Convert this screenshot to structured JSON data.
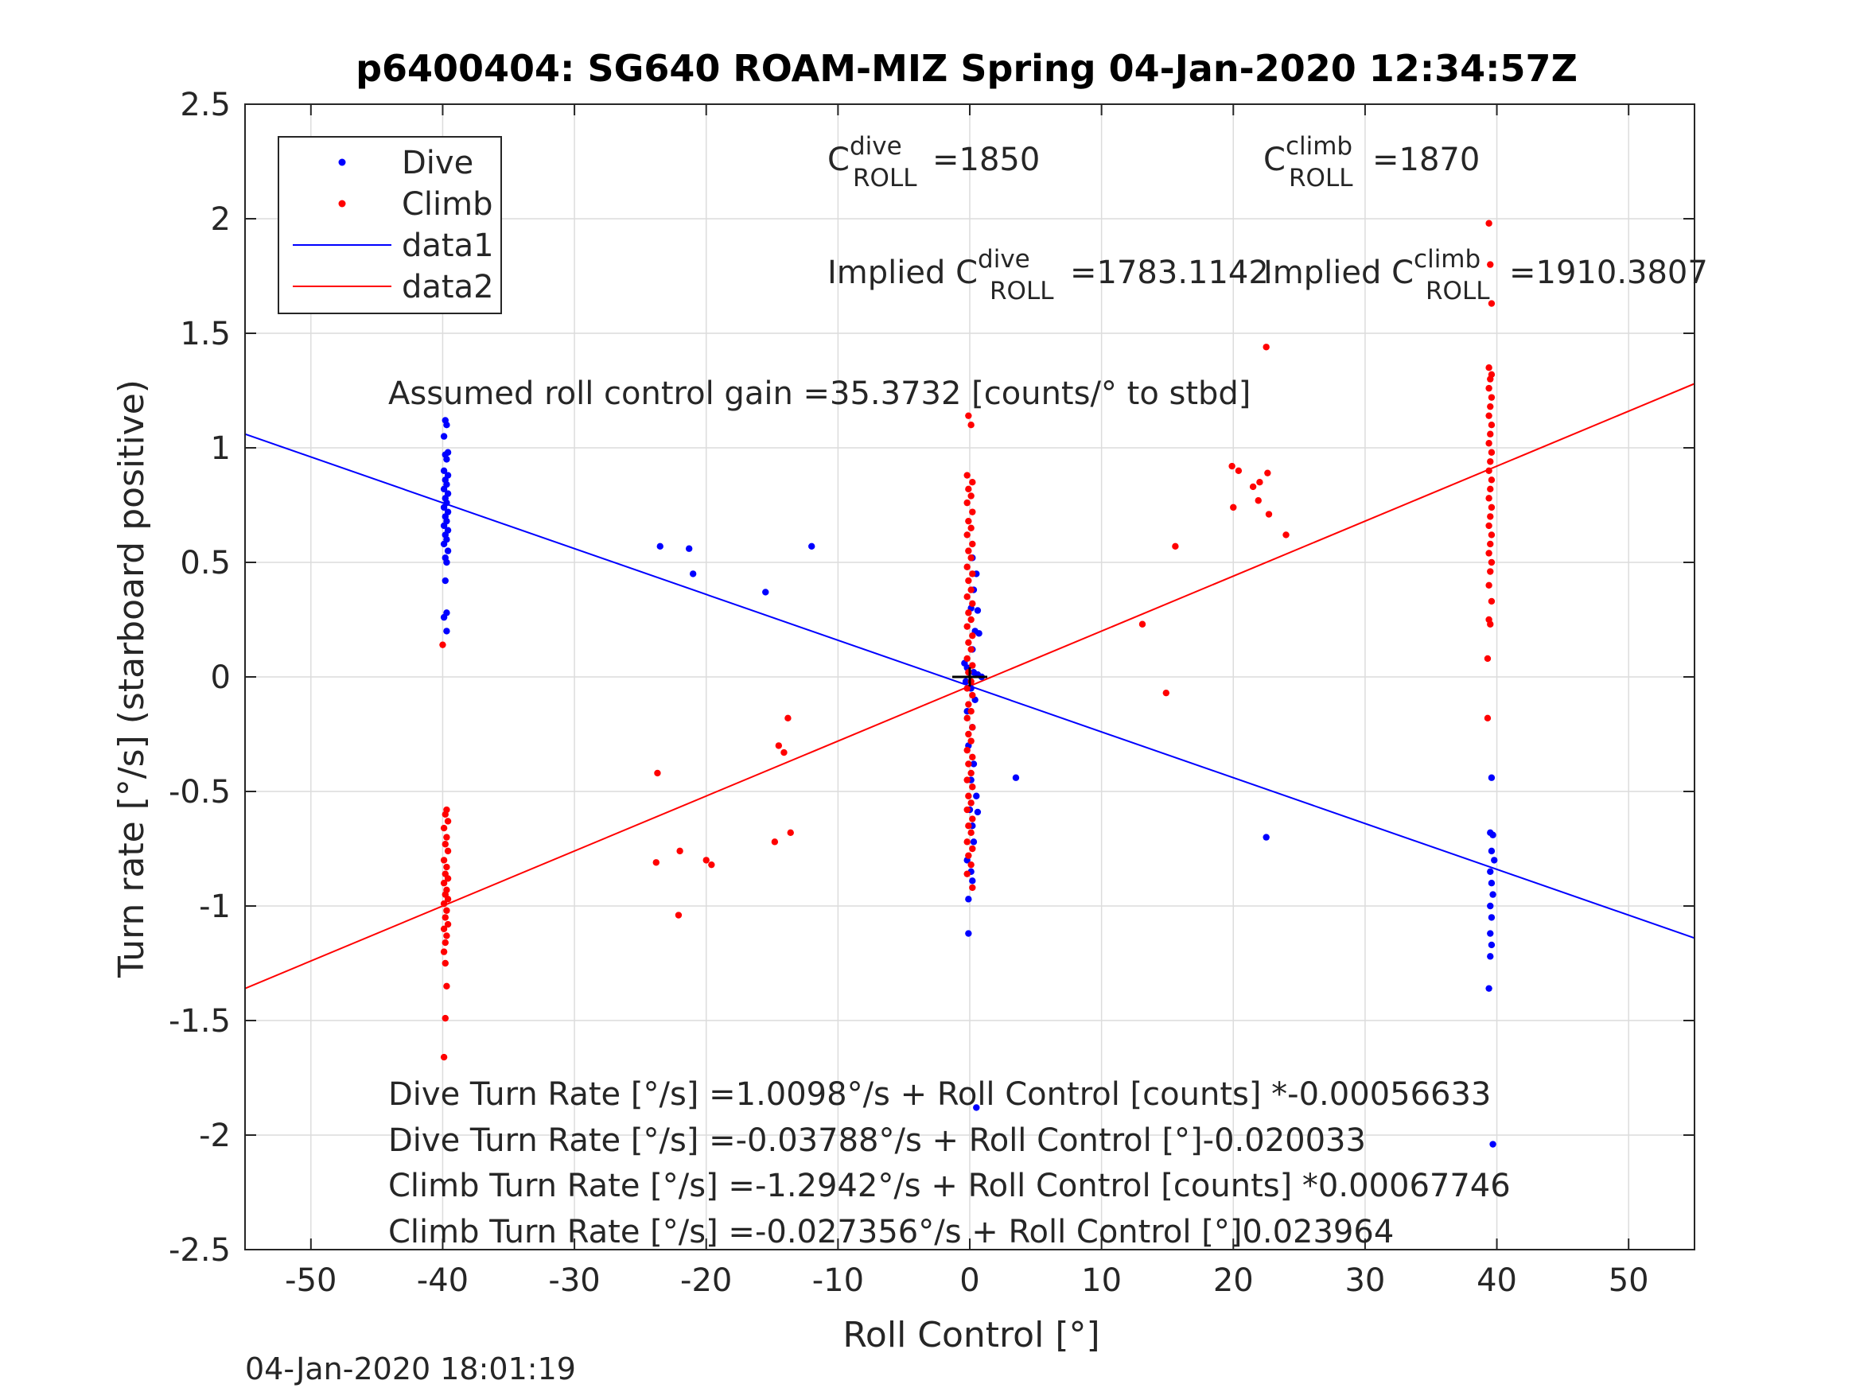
{
  "chart_data": {
    "type": "scatter",
    "title": "p6400404: SG640 ROAM-MIZ Spring 04-Jan-2020 12:34:57Z",
    "xlabel": "Roll Control [°]",
    "ylabel": "Turn rate [°/s] (starboard positive)",
    "xlim": [
      -55,
      55
    ],
    "ylim": [
      -2.5,
      2.5
    ],
    "xticks": [
      -50,
      -40,
      -30,
      -20,
      -10,
      0,
      10,
      20,
      30,
      40,
      50
    ],
    "yticks": [
      -2.5,
      -2,
      -1.5,
      -1,
      -0.5,
      0,
      0.5,
      1,
      1.5,
      2,
      2.5
    ],
    "xtick_labels": [
      "-50",
      "-40",
      "-30",
      "-20",
      "-10",
      "0",
      "10",
      "20",
      "30",
      "40",
      "50"
    ],
    "ytick_labels": [
      "-2.5",
      "-2",
      "-1.5",
      "-1",
      "-0.5",
      "0",
      "0.5",
      "1",
      "1.5",
      "2",
      "2.5"
    ],
    "grid": true,
    "legend_position": "top-left",
    "legend": [
      "Dive",
      "Climb",
      "data1",
      "data2"
    ],
    "colors": {
      "dive": "#0000ff",
      "climb": "#ff0000",
      "marker": "#000000",
      "grid": "#dcdcdc",
      "axis": "#262626"
    },
    "series": [
      {
        "name": "Dive",
        "kind": "points",
        "points": [
          [
            -39.8,
            1.12
          ],
          [
            -39.7,
            1.1
          ],
          [
            -39.9,
            1.05
          ],
          [
            -39.6,
            0.98
          ],
          [
            -39.8,
            0.97
          ],
          [
            -39.7,
            0.95
          ],
          [
            -39.9,
            0.9
          ],
          [
            -39.6,
            0.88
          ],
          [
            -39.8,
            0.86
          ],
          [
            -39.7,
            0.84
          ],
          [
            -39.9,
            0.82
          ],
          [
            -39.6,
            0.8
          ],
          [
            -39.8,
            0.78
          ],
          [
            -39.7,
            0.76
          ],
          [
            -39.9,
            0.74
          ],
          [
            -39.6,
            0.72
          ],
          [
            -39.8,
            0.7
          ],
          [
            -39.7,
            0.68
          ],
          [
            -39.9,
            0.66
          ],
          [
            -39.6,
            0.64
          ],
          [
            -39.8,
            0.62
          ],
          [
            -39.7,
            0.6
          ],
          [
            -39.9,
            0.58
          ],
          [
            -39.6,
            0.55
          ],
          [
            -39.8,
            0.52
          ],
          [
            -39.7,
            0.5
          ],
          [
            -39.8,
            0.42
          ],
          [
            -39.7,
            0.28
          ],
          [
            -39.9,
            0.26
          ],
          [
            -39.7,
            0.2
          ],
          [
            -23.5,
            0.57
          ],
          [
            -21.3,
            0.56
          ],
          [
            -21.0,
            0.45
          ],
          [
            -15.5,
            0.37
          ],
          [
            -12.0,
            0.57
          ],
          [
            0.2,
            0.52
          ],
          [
            0.5,
            0.45
          ],
          [
            0.3,
            0.38
          ],
          [
            0.1,
            0.3
          ],
          [
            0.6,
            0.29
          ],
          [
            0.4,
            0.2
          ],
          [
            0.7,
            0.19
          ],
          [
            0.2,
            0.12
          ],
          [
            -0.4,
            0.06
          ],
          [
            -0.2,
            0.04
          ],
          [
            0.3,
            0.02
          ],
          [
            0.6,
            0.01
          ],
          [
            0.9,
            0.0
          ],
          [
            -0.3,
            -0.02
          ],
          [
            0.1,
            -0.05
          ],
          [
            0.4,
            -0.1
          ],
          [
            -0.2,
            -0.15
          ],
          [
            0.2,
            -0.22
          ],
          [
            -0.1,
            -0.3
          ],
          [
            0.3,
            -0.38
          ],
          [
            0.1,
            -0.45
          ],
          [
            0.5,
            -0.52
          ],
          [
            0.0,
            -0.58
          ],
          [
            0.6,
            -0.59
          ],
          [
            0.2,
            -0.65
          ],
          [
            0.3,
            -0.72
          ],
          [
            -0.2,
            -0.8
          ],
          [
            0.1,
            -0.85
          ],
          [
            0.2,
            -0.89
          ],
          [
            -0.1,
            -0.97
          ],
          [
            -0.1,
            -1.12
          ],
          [
            0.5,
            -1.88
          ],
          [
            3.5,
            -0.44
          ],
          [
            22.5,
            -0.7
          ],
          [
            39.6,
            -0.44
          ],
          [
            39.5,
            -0.68
          ],
          [
            39.7,
            -0.69
          ],
          [
            39.6,
            -0.76
          ],
          [
            39.8,
            -0.8
          ],
          [
            39.5,
            -0.85
          ],
          [
            39.6,
            -0.9
          ],
          [
            39.7,
            -0.95
          ],
          [
            39.5,
            -1.0
          ],
          [
            39.6,
            -1.05
          ],
          [
            39.5,
            -1.12
          ],
          [
            39.6,
            -1.17
          ],
          [
            39.5,
            -1.22
          ],
          [
            39.4,
            -1.36
          ],
          [
            39.7,
            -2.04
          ]
        ]
      },
      {
        "name": "Climb",
        "kind": "points",
        "points": [
          [
            -40.0,
            0.14
          ],
          [
            -39.7,
            -0.58
          ],
          [
            -39.8,
            -0.6
          ],
          [
            -39.6,
            -0.63
          ],
          [
            -39.9,
            -0.66
          ],
          [
            -39.7,
            -0.7
          ],
          [
            -39.8,
            -0.73
          ],
          [
            -39.6,
            -0.76
          ],
          [
            -39.9,
            -0.8
          ],
          [
            -39.7,
            -0.83
          ],
          [
            -39.8,
            -0.86
          ],
          [
            -39.6,
            -0.88
          ],
          [
            -39.9,
            -0.9
          ],
          [
            -39.7,
            -0.93
          ],
          [
            -39.8,
            -0.95
          ],
          [
            -39.6,
            -0.97
          ],
          [
            -39.9,
            -0.99
          ],
          [
            -39.7,
            -1.02
          ],
          [
            -39.8,
            -1.05
          ],
          [
            -39.6,
            -1.08
          ],
          [
            -39.9,
            -1.1
          ],
          [
            -39.7,
            -1.13
          ],
          [
            -39.8,
            -1.16
          ],
          [
            -39.9,
            -1.2
          ],
          [
            -39.8,
            -1.25
          ],
          [
            -39.7,
            -1.35
          ],
          [
            -39.8,
            -1.49
          ],
          [
            -39.9,
            -1.66
          ],
          [
            -23.7,
            -0.42
          ],
          [
            -23.8,
            -0.81
          ],
          [
            -22.0,
            -0.76
          ],
          [
            -22.1,
            -1.04
          ],
          [
            -20.0,
            -0.8
          ],
          [
            -19.6,
            -0.82
          ],
          [
            -14.5,
            -0.3
          ],
          [
            -14.1,
            -0.33
          ],
          [
            -13.8,
            -0.18
          ],
          [
            -14.8,
            -0.72
          ],
          [
            -13.6,
            -0.68
          ],
          [
            13.1,
            0.23
          ],
          [
            14.9,
            -0.07
          ],
          [
            15.6,
            0.57
          ],
          [
            19.9,
            0.92
          ],
          [
            20.4,
            0.9
          ],
          [
            20.0,
            0.74
          ],
          [
            21.5,
            0.83
          ],
          [
            22.0,
            0.85
          ],
          [
            22.6,
            0.89
          ],
          [
            21.9,
            0.77
          ],
          [
            22.7,
            0.71
          ],
          [
            22.5,
            1.44
          ],
          [
            24.0,
            0.62
          ],
          [
            -0.1,
            1.14
          ],
          [
            0.1,
            1.1
          ],
          [
            -0.2,
            0.88
          ],
          [
            0.2,
            0.85
          ],
          [
            -0.1,
            0.82
          ],
          [
            0.1,
            0.79
          ],
          [
            -0.2,
            0.76
          ],
          [
            0.2,
            0.72
          ],
          [
            -0.1,
            0.68
          ],
          [
            0.1,
            0.65
          ],
          [
            -0.2,
            0.62
          ],
          [
            0.2,
            0.58
          ],
          [
            -0.1,
            0.55
          ],
          [
            0.1,
            0.52
          ],
          [
            -0.2,
            0.48
          ],
          [
            0.2,
            0.45
          ],
          [
            -0.1,
            0.42
          ],
          [
            0.1,
            0.38
          ],
          [
            -0.2,
            0.35
          ],
          [
            0.2,
            0.32
          ],
          [
            -0.1,
            0.28
          ],
          [
            0.1,
            0.25
          ],
          [
            -0.2,
            0.22
          ],
          [
            0.2,
            0.18
          ],
          [
            -0.1,
            0.15
          ],
          [
            0.1,
            0.12
          ],
          [
            -0.2,
            0.08
          ],
          [
            0.2,
            0.05
          ],
          [
            -0.1,
            0.02
          ],
          [
            0.1,
            -0.02
          ],
          [
            -0.2,
            -0.05
          ],
          [
            0.2,
            -0.08
          ],
          [
            -0.1,
            -0.12
          ],
          [
            0.1,
            -0.15
          ],
          [
            -0.2,
            -0.18
          ],
          [
            0.2,
            -0.22
          ],
          [
            -0.1,
            -0.25
          ],
          [
            0.1,
            -0.28
          ],
          [
            -0.2,
            -0.32
          ],
          [
            0.2,
            -0.35
          ],
          [
            -0.1,
            -0.38
          ],
          [
            0.1,
            -0.42
          ],
          [
            -0.2,
            -0.45
          ],
          [
            0.2,
            -0.48
          ],
          [
            -0.1,
            -0.52
          ],
          [
            0.1,
            -0.55
          ],
          [
            -0.2,
            -0.58
          ],
          [
            0.2,
            -0.62
          ],
          [
            -0.1,
            -0.65
          ],
          [
            0.1,
            -0.68
          ],
          [
            -0.2,
            -0.72
          ],
          [
            0.2,
            -0.75
          ],
          [
            -0.1,
            -0.78
          ],
          [
            0.1,
            -0.82
          ],
          [
            -0.2,
            -0.86
          ],
          [
            0.2,
            -0.92
          ],
          [
            39.4,
            1.98
          ],
          [
            39.5,
            1.8
          ],
          [
            39.6,
            1.63
          ],
          [
            39.4,
            1.35
          ],
          [
            39.6,
            1.32
          ],
          [
            39.5,
            1.3
          ],
          [
            39.4,
            1.26
          ],
          [
            39.6,
            1.22
          ],
          [
            39.5,
            1.18
          ],
          [
            39.4,
            1.14
          ],
          [
            39.6,
            1.1
          ],
          [
            39.5,
            1.06
          ],
          [
            39.4,
            1.02
          ],
          [
            39.6,
            0.98
          ],
          [
            39.5,
            0.94
          ],
          [
            39.4,
            0.9
          ],
          [
            39.6,
            0.86
          ],
          [
            39.5,
            0.82
          ],
          [
            39.4,
            0.78
          ],
          [
            39.6,
            0.74
          ],
          [
            39.5,
            0.7
          ],
          [
            39.4,
            0.66
          ],
          [
            39.6,
            0.62
          ],
          [
            39.5,
            0.58
          ],
          [
            39.4,
            0.54
          ],
          [
            39.6,
            0.5
          ],
          [
            39.5,
            0.46
          ],
          [
            39.4,
            0.4
          ],
          [
            39.6,
            0.33
          ],
          [
            39.4,
            0.25
          ],
          [
            39.5,
            0.23
          ],
          [
            39.3,
            0.08
          ],
          [
            39.3,
            -0.18
          ]
        ]
      },
      {
        "name": "data1",
        "kind": "line",
        "points": [
          [
            -55,
            1.06
          ],
          [
            55,
            -1.14
          ]
        ]
      },
      {
        "name": "data2",
        "kind": "line",
        "points": [
          [
            -55,
            -1.36
          ],
          [
            55,
            1.28
          ]
        ]
      }
    ],
    "origin_marker": [
      0,
      0
    ],
    "annotations": {
      "c_roll_dive": {
        "base": "C",
        "sup": "dive",
        "sub": "ROLL",
        "value": "=1850"
      },
      "c_roll_climb": {
        "base": "C",
        "sup": "climb",
        "sub": "ROLL",
        "value": "=1870"
      },
      "implied_dive": {
        "prefix": "Implied C",
        "sup": "dive",
        "sub": "ROLL",
        "value": "=1783.1142"
      },
      "implied_climb": {
        "prefix": "Implied C",
        "sup": "climb",
        "sub": "ROLL",
        "value": "=1910.3807"
      },
      "gain": "Assumed roll control gain =35.3732 [counts/° to stbd]",
      "fit_lines": [
        "Dive Turn Rate [°/s] =1.0098°/s + Roll Control [counts] *-0.00056633",
        "Dive Turn Rate [°/s] =-0.03788°/s + Roll Control [°]-0.020033",
        "Climb Turn Rate [°/s] =-1.2942°/s + Roll Control [counts] *0.00067746",
        "Climb Turn Rate [°/s] =-0.027356°/s + Roll Control [°]0.023964"
      ]
    },
    "footer_timestamp": "04-Jan-2020 18:01:19"
  }
}
